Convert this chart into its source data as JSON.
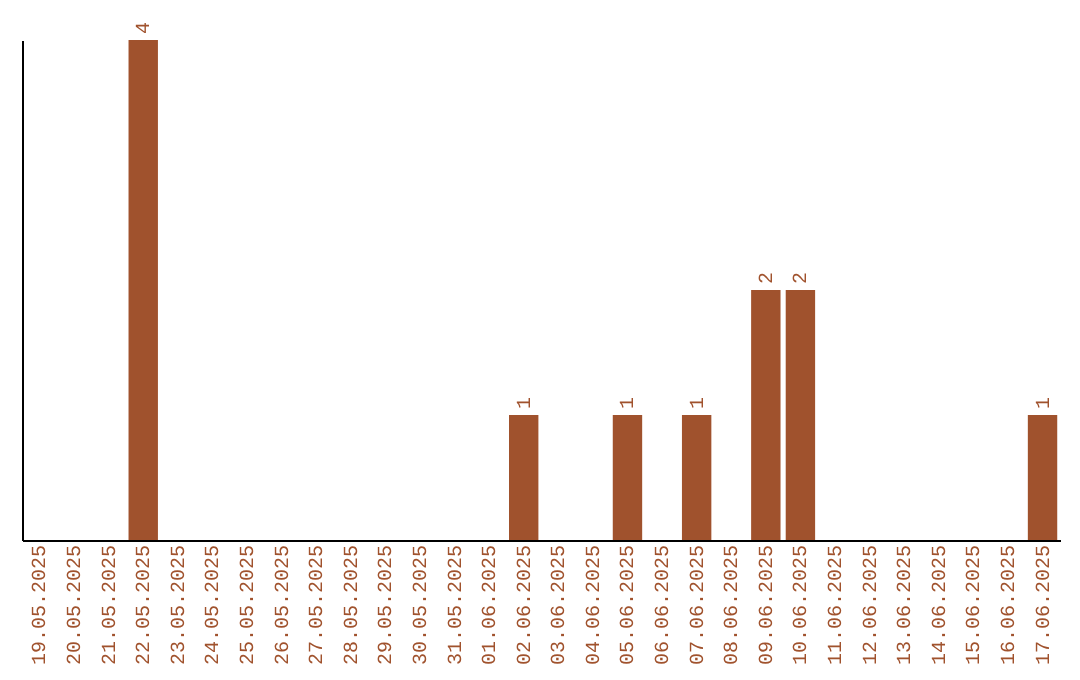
{
  "chart_data": {
    "type": "bar",
    "categories": [
      "19.05.2025",
      "20.05.2025",
      "21.05.2025",
      "22.05.2025",
      "23.05.2025",
      "24.05.2025",
      "25.05.2025",
      "26.05.2025",
      "27.05.2025",
      "28.05.2025",
      "29.05.2025",
      "30.05.2025",
      "31.05.2025",
      "01.06.2025",
      "02.06.2025",
      "03.06.2025",
      "04.06.2025",
      "05.06.2025",
      "06.06.2025",
      "07.06.2025",
      "08.06.2025",
      "09.06.2025",
      "10.06.2025",
      "11.06.2025",
      "12.06.2025",
      "13.06.2025",
      "14.06.2025",
      "15.06.2025",
      "16.06.2025",
      "17.06.2025"
    ],
    "values": [
      0,
      0,
      0,
      4,
      0,
      0,
      0,
      0,
      0,
      0,
      0,
      0,
      0,
      0,
      1,
      0,
      0,
      1,
      0,
      1,
      0,
      2,
      2,
      0,
      0,
      0,
      0,
      0,
      0,
      1
    ],
    "value_labels": [
      null,
      null,
      null,
      "4",
      null,
      null,
      null,
      null,
      null,
      null,
      null,
      null,
      null,
      null,
      "1",
      null,
      null,
      "1",
      null,
      "1",
      null,
      "2",
      "2",
      null,
      null,
      null,
      null,
      null,
      null,
      "1"
    ],
    "color": "#a0522d",
    "grid": false
  }
}
